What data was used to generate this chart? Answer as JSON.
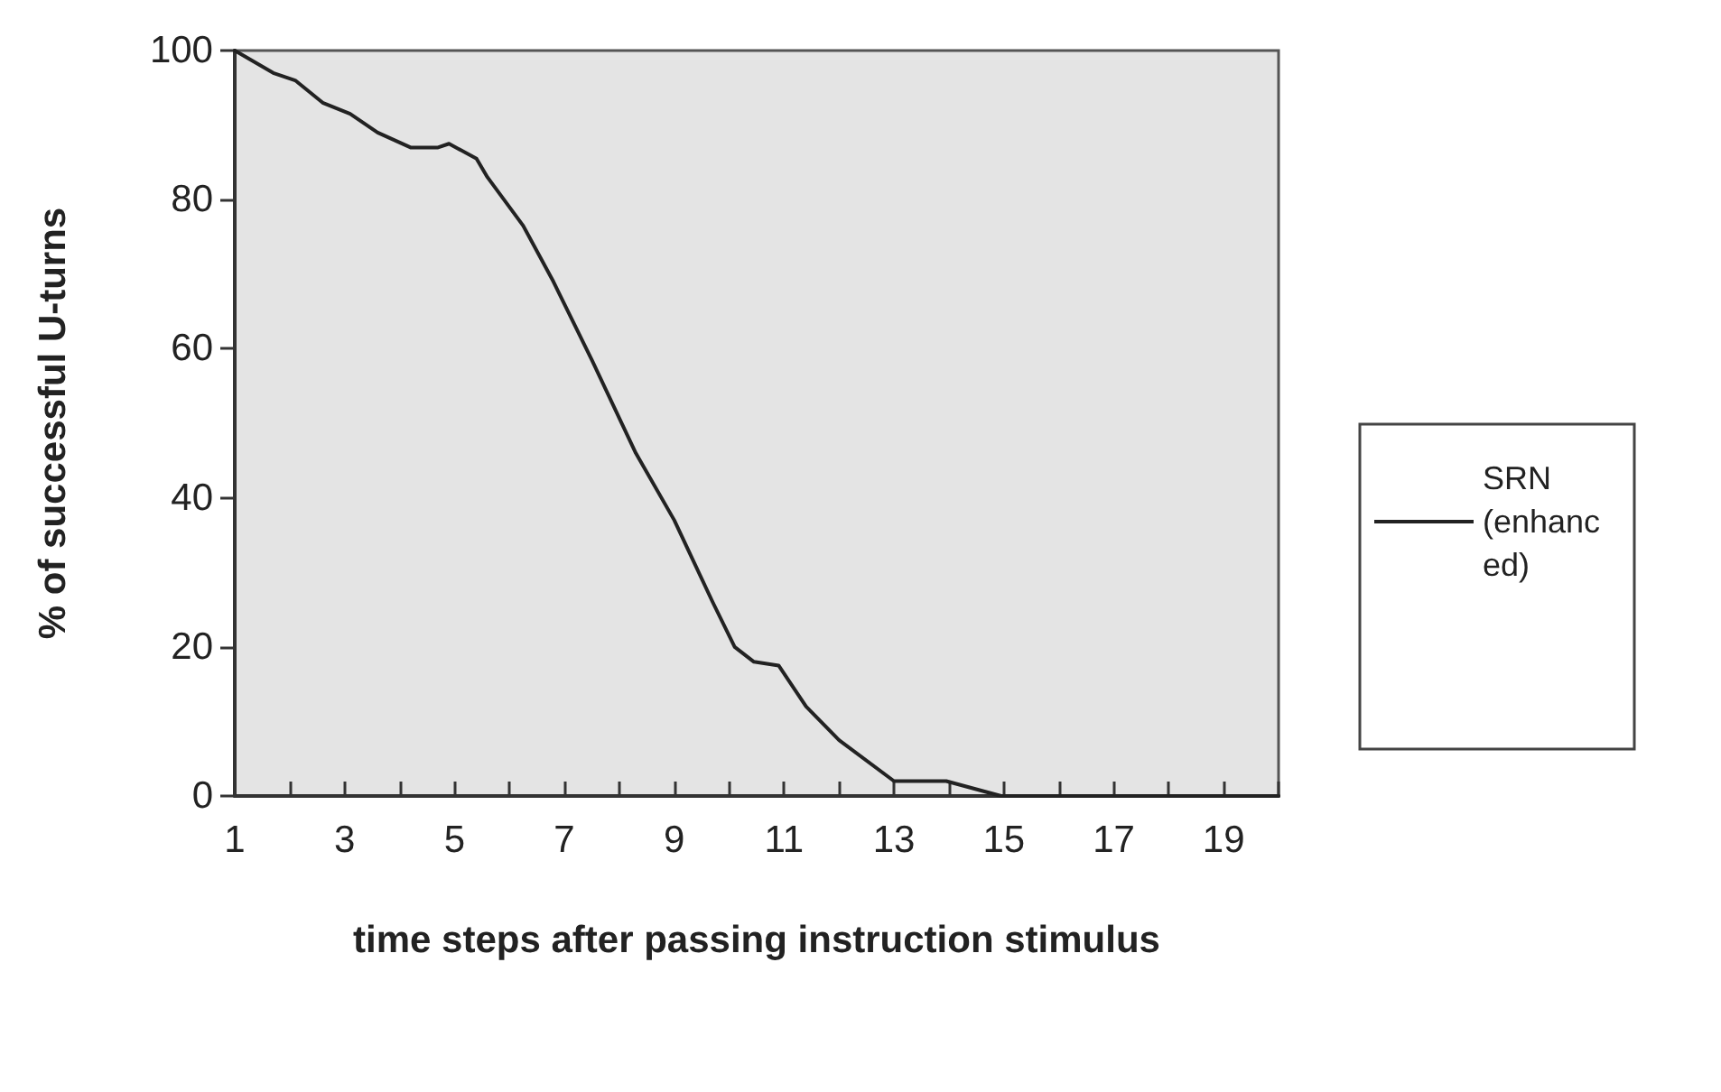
{
  "chart_data": {
    "type": "line",
    "xlabel": "time steps after passing instruction stimulus",
    "ylabel": "% of successful U-turns",
    "xlim": [
      1,
      20
    ],
    "xticks": [
      1,
      {
        "value": 2,
        "label": null
      },
      3,
      {
        "value": 4,
        "label": null
      },
      5,
      {
        "value": 6,
        "label": null
      },
      7,
      {
        "value": 8,
        "label": null
      },
      9,
      {
        "value": 10,
        "label": null
      },
      11,
      {
        "value": 12,
        "label": null
      },
      13,
      {
        "value": 14,
        "label": null
      },
      15,
      {
        "value": 16,
        "label": null
      },
      17,
      {
        "value": 18,
        "label": null
      },
      19,
      {
        "value": 20,
        "label": null
      }
    ],
    "ylim": [
      0,
      100
    ],
    "yticks": [
      0,
      20,
      40,
      60,
      80,
      100
    ],
    "series": [
      {
        "name": "SRN (enhanced)",
        "color": "#222222",
        "x": [
          1,
          1.7,
          2.1,
          2.6,
          3.1,
          3.6,
          4.2,
          4.7,
          4.9,
          5.4,
          5.6,
          6.25,
          6.8,
          7.5,
          8.3,
          9,
          9.7,
          10.1,
          10.45,
          10.9,
          11.4,
          12,
          13,
          13.2,
          13.95,
          14.95,
          16,
          17,
          18,
          19,
          20
        ],
        "values": [
          100,
          97,
          96,
          93,
          91.5,
          89,
          87,
          87,
          87.5,
          85.5,
          83,
          76.5,
          69,
          58.5,
          46,
          37,
          26,
          20,
          18,
          17.5,
          12,
          7.5,
          2,
          2,
          2,
          0,
          0,
          0,
          0,
          0,
          0
        ]
      }
    ],
    "grid": false,
    "legend": "right",
    "marker": "none",
    "line_style": "solid"
  }
}
